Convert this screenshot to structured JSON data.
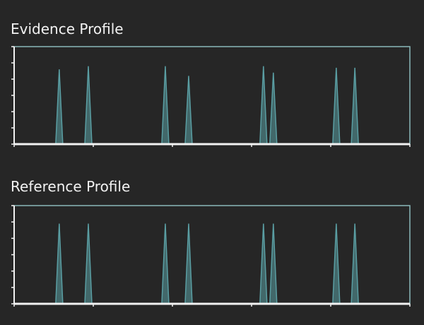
{
  "chart_data": [
    {
      "type": "peak",
      "title": "Evidence Profile",
      "x": [
        11.4,
        18.75,
        38.2,
        44.1,
        63.0,
        65.5,
        81.4,
        86.1
      ],
      "values": [
        4.6,
        4.8,
        4.8,
        4.2,
        4.8,
        4.4,
        4.7,
        4.7
      ],
      "color": "#5a9ea3",
      "xlim": [
        0,
        100
      ],
      "xticks": [
        0,
        20,
        40,
        60,
        80,
        100
      ],
      "ylim": [
        0,
        6
      ],
      "yticks": [
        0,
        1,
        2,
        3,
        4,
        5,
        6
      ]
    },
    {
      "type": "peak",
      "title": "Reference Profile",
      "x": [
        11.4,
        18.75,
        38.2,
        44.1,
        63.0,
        65.5,
        81.4,
        86.1
      ],
      "values": [
        4.9,
        4.9,
        4.9,
        4.9,
        4.9,
        4.9,
        4.9,
        4.9
      ],
      "color": "#5a9ea3",
      "xlim": [
        0,
        100
      ],
      "xticks": [
        0,
        20,
        40,
        60,
        80,
        100
      ],
      "ylim": [
        0,
        6
      ],
      "yticks": [
        0,
        1,
        2,
        3,
        4,
        5,
        6
      ]
    }
  ]
}
